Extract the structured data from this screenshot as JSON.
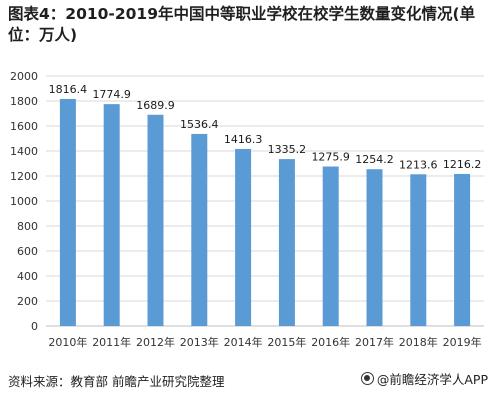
{
  "title": "图表4：2010-2019年中国中等职业学校在校学生数量变化情况(单位：万人)",
  "source": "资料来源：教育部 前瞻产业研究院整理",
  "brand": "@前瞻经济学人APP",
  "colors": {
    "bar": "#5b9bd5",
    "grid": "#d9d9d9",
    "axis": "#bfbfbf"
  },
  "chart_data": {
    "type": "bar",
    "categories": [
      "2010年",
      "2011年",
      "2012年",
      "2013年",
      "2014年",
      "2015年",
      "2016年",
      "2017年",
      "2018年",
      "2019年"
    ],
    "values": [
      1816.4,
      1774.9,
      1689.9,
      1536.4,
      1416.3,
      1335.2,
      1275.9,
      1254.2,
      1213.6,
      1216.2
    ],
    "value_labels": [
      "1816.4",
      "1774.9",
      "1689.9",
      "1536.4",
      "1416.3",
      "1335.2",
      "1275.9",
      "1254.2",
      "1213.6",
      "1216.2"
    ],
    "ylim": [
      0,
      2000
    ],
    "yticks": [
      "0",
      "200",
      "400",
      "600",
      "800",
      "1000",
      "1200",
      "1400",
      "1600",
      "1800",
      "2000"
    ],
    "grid": true
  }
}
